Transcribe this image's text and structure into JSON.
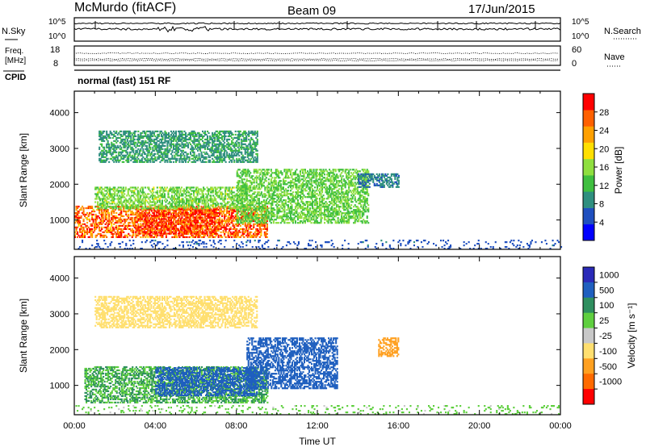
{
  "header": {
    "station": "McMurdo (fitACF)",
    "beam": "Beam 09",
    "date": "17/Jun/2015",
    "cpid_label": "CPID",
    "cpid_text": "normal (fast) 151 RF"
  },
  "noise_panel": {
    "left_label": "N.Sky",
    "right_label": "N.Search",
    "left_ticks": [
      "10^5",
      "10^0"
    ],
    "right_ticks": [
      "10^5",
      "10^0"
    ]
  },
  "freq_panel": {
    "left_label_1": "Freq.",
    "left_label_2": "[MHz]",
    "right_label": "Nave",
    "left_ticks": [
      "18",
      "8"
    ],
    "right_ticks": [
      "60",
      "0"
    ]
  },
  "chart_data": [
    {
      "type": "heatmap",
      "name": "power",
      "ylabel": "Slant Range [km]",
      "xlabel": "",
      "ylim": [
        180,
        4600
      ],
      "xlim_hours": [
        0,
        24
      ],
      "yticks": [
        "1000",
        "2000",
        "3000",
        "4000"
      ],
      "colorbar": {
        "label": "Power [dB]",
        "ticks": [
          "4",
          "8",
          "12",
          "16",
          "20",
          "24",
          "28"
        ],
        "range": [
          0,
          32
        ],
        "colors": [
          "#0000ff",
          "#1f4fbf",
          "#2f8f7f",
          "#3fbf3f",
          "#8fdf3f",
          "#ffdf00",
          "#ffa000",
          "#ff6000",
          "#ff0000"
        ]
      },
      "features": [
        {
          "t_start": 0.0,
          "t_end": 9.5,
          "r_low": 500,
          "r_high": 1400,
          "level": 26
        },
        {
          "t_start": 3.0,
          "t_end": 7.0,
          "r_low": 600,
          "r_high": 1300,
          "level": 29
        },
        {
          "t_start": 1.0,
          "t_end": 8.5,
          "r_low": 1300,
          "r_high": 1900,
          "level": 15
        },
        {
          "t_start": 1.2,
          "t_end": 9.0,
          "r_low": 2600,
          "r_high": 3500,
          "level": 10
        },
        {
          "t_start": 8.0,
          "t_end": 14.5,
          "r_low": 900,
          "r_high": 2400,
          "level": 14
        },
        {
          "t_start": 14.0,
          "t_end": 16.0,
          "r_low": 1900,
          "r_high": 2300,
          "level": 8
        },
        {
          "t_start": 0.0,
          "t_end": 24.0,
          "r_low": 180,
          "r_high": 450,
          "level": 6
        }
      ]
    },
    {
      "type": "heatmap",
      "name": "velocity",
      "ylabel": "Slant Range [km]",
      "xlabel": "Time UT",
      "ylim": [
        180,
        4600
      ],
      "xlim_hours": [
        0,
        24
      ],
      "yticks": [
        "1000",
        "2000",
        "3000",
        "4000"
      ],
      "xticks": [
        "00:00",
        "04:00",
        "08:00",
        "12:00",
        "16:00",
        "20:00",
        "00:00"
      ],
      "colorbar": {
        "label": "Velocity [m s⁻¹]",
        "ticks": [
          "1000",
          "500",
          "100",
          "25",
          "-25",
          "-100",
          "-500",
          "-1000"
        ],
        "colors": [
          "#2a2ab8",
          "#1f5fbf",
          "#2f8f5f",
          "#5fcf3f",
          "#c8c8c8",
          "#ffdf6f",
          "#ffa020",
          "#ff6a00",
          "#ff0000"
        ]
      },
      "features": [
        {
          "t_start": 0.5,
          "t_end": 9.5,
          "r_low": 500,
          "r_high": 1500,
          "level": 100
        },
        {
          "t_start": 4.0,
          "t_end": 9.0,
          "r_low": 700,
          "r_high": 1500,
          "level": 800
        },
        {
          "t_start": 8.5,
          "t_end": 13.0,
          "r_low": 900,
          "r_high": 2300,
          "level": 700
        },
        {
          "t_start": 1.0,
          "t_end": 9.0,
          "r_low": 2600,
          "r_high": 3500,
          "level": -80
        },
        {
          "t_start": 15.0,
          "t_end": 16.0,
          "r_low": 1800,
          "r_high": 2300,
          "level": -400
        },
        {
          "t_start": 0.0,
          "t_end": 24.0,
          "r_low": 180,
          "r_high": 450,
          "level": 30
        }
      ]
    }
  ]
}
